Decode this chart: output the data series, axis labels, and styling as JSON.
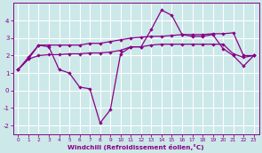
{
  "xlabel": "Windchill (Refroidissement éolien,°C)",
  "bg_color": "#cce8e8",
  "line_color": "#880088",
  "grid_color": "#ffffff",
  "hours": [
    0,
    1,
    2,
    3,
    4,
    5,
    6,
    7,
    8,
    9,
    10,
    11,
    12,
    13,
    14,
    15,
    16,
    17,
    18,
    19,
    20,
    21,
    22,
    23
  ],
  "line_jagged": [
    1.2,
    1.8,
    2.6,
    2.5,
    1.2,
    1.0,
    0.2,
    0.1,
    -1.85,
    -1.1,
    2.1,
    2.5,
    2.5,
    3.5,
    4.6,
    4.3,
    3.2,
    3.1,
    3.1,
    3.2,
    2.4,
    2.0,
    1.4,
    2.0
  ],
  "line_upper": [
    1.2,
    1.9,
    2.6,
    2.6,
    2.6,
    2.6,
    2.6,
    2.7,
    2.7,
    2.8,
    2.9,
    3.0,
    3.05,
    3.1,
    3.1,
    3.15,
    3.2,
    3.2,
    3.2,
    3.25,
    3.25,
    3.3,
    2.0,
    2.0
  ],
  "line_lower": [
    1.2,
    1.8,
    2.0,
    2.05,
    2.05,
    2.1,
    2.1,
    2.15,
    2.15,
    2.2,
    2.3,
    2.5,
    2.5,
    2.6,
    2.65,
    2.65,
    2.65,
    2.65,
    2.65,
    2.65,
    2.65,
    2.1,
    1.9,
    2.0
  ],
  "ylim": [
    -2.5,
    5.0
  ],
  "xlim": [
    -0.5,
    23.5
  ],
  "yticks": [
    -2,
    -1,
    0,
    1,
    2,
    3,
    4
  ],
  "xticks": [
    0,
    1,
    2,
    3,
    4,
    5,
    6,
    7,
    8,
    9,
    10,
    11,
    12,
    13,
    14,
    15,
    16,
    17,
    18,
    19,
    20,
    21,
    22,
    23
  ]
}
